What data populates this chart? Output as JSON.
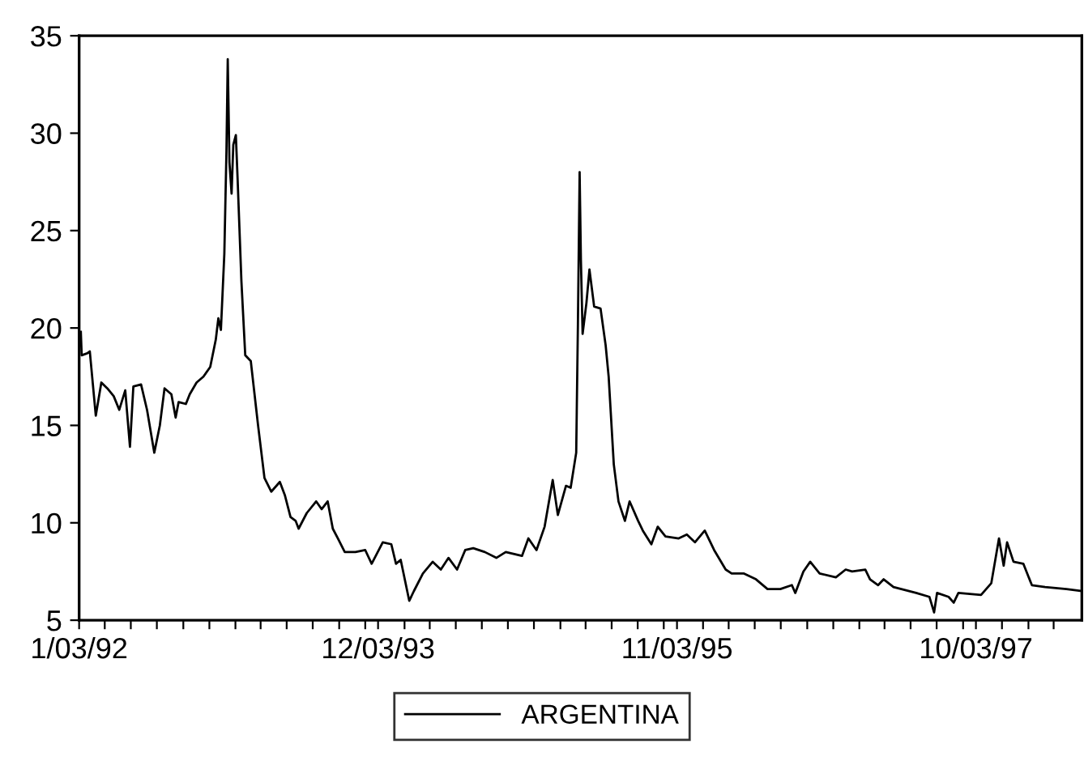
{
  "chart_data": {
    "type": "line",
    "x": [
      "1992-01-07",
      "1992-01-09",
      "1992-01-22",
      "1992-01-28",
      "1992-02-11",
      "1992-02-24",
      "1992-03-09",
      "1992-03-24",
      "1992-04-06",
      "1992-04-20",
      "1992-05-01",
      "1992-05-09",
      "1992-05-27",
      "1992-06-10",
      "1992-06-27",
      "1992-07-10",
      "1992-07-21",
      "1992-08-06",
      "1992-08-16",
      "1992-08-23",
      "1992-09-09",
      "1992-09-18",
      "1992-10-04",
      "1992-10-20",
      "1992-11-05",
      "1992-11-18",
      "1992-11-24",
      "1992-11-30",
      "1992-12-08",
      "1992-12-13",
      "1992-12-16",
      "1992-12-20",
      "1992-12-25",
      "1992-12-29",
      "1993-01-04",
      "1993-01-08",
      "1993-01-17",
      "1993-01-26",
      "1993-02-08",
      "1993-02-25",
      "1993-03-12",
      "1993-03-28",
      "1993-04-17",
      "1993-04-29",
      "1993-05-12",
      "1993-05-24",
      "1993-05-31",
      "1993-06-19",
      "1993-07-11",
      "1993-07-24",
      "1993-08-07",
      "1993-08-19",
      "1993-08-31",
      "1993-09-16",
      "1993-10-11",
      "1993-11-03",
      "1993-11-18",
      "1993-12-14",
      "1994-01-03",
      "1994-01-14",
      "1994-01-25",
      "1994-02-14",
      "1994-02-25",
      "1994-03-18",
      "1994-04-10",
      "1994-04-29",
      "1994-05-17",
      "1994-06-06",
      "1994-06-25",
      "1994-07-14",
      "1994-08-10",
      "1994-09-06",
      "1994-09-28",
      "1994-11-05",
      "1994-11-20",
      "1994-12-09",
      "1994-12-28",
      "1995-01-16",
      "1995-01-28",
      "1995-02-16",
      "1995-02-27",
      "1995-03-12",
      "1995-03-16",
      "1995-03-20",
      "1995-03-23",
      "1995-03-27",
      "1995-04-05",
      "1995-04-12",
      "1995-04-23",
      "1995-05-08",
      "1995-05-20",
      "1995-05-27",
      "1995-06-08",
      "1995-06-19",
      "1995-07-04",
      "1995-07-15",
      "1995-08-04",
      "1995-08-15",
      "1995-09-04",
      "1995-09-19",
      "1995-10-07",
      "1995-11-07",
      "1995-11-26",
      "1995-12-15",
      "1996-01-07",
      "1996-01-29",
      "1996-02-25",
      "1996-03-10",
      "1996-04-07",
      "1996-05-06",
      "1996-06-02",
      "1996-07-02",
      "1996-07-29",
      "1996-08-06",
      "1996-08-25",
      "1996-09-10",
      "1996-10-02",
      "1996-11-09",
      "1996-12-02",
      "1996-12-17",
      "1997-01-17",
      "1997-01-28",
      "1997-02-16",
      "1997-03-01",
      "1997-03-24",
      "1997-05-16",
      "1997-06-16",
      "1997-06-27",
      "1997-07-04",
      "1997-07-31",
      "1997-08-12",
      "1997-08-23",
      "1997-10-15",
      "1997-11-08",
      "1997-11-26",
      "1997-12-07",
      "1997-12-15",
      "1997-12-30",
      "1998-01-22",
      "1998-02-11",
      "1998-03-14",
      "1998-05-03",
      "1998-06-06"
    ],
    "series": [
      {
        "name": "ARGENTINA",
        "color": "#000000",
        "values": [
          19.8,
          18.6,
          18.7,
          18.8,
          15.5,
          17.2,
          16.9,
          16.5,
          15.8,
          16.8,
          13.9,
          17.0,
          17.1,
          15.8,
          13.6,
          15.0,
          16.9,
          16.6,
          15.4,
          16.2,
          16.1,
          16.6,
          17.2,
          17.5,
          18.0,
          19.4,
          20.5,
          19.9,
          23.8,
          29.1,
          33.8,
          28.5,
          26.9,
          29.4,
          29.9,
          27.7,
          22.4,
          18.6,
          18.3,
          15.0,
          12.3,
          11.6,
          12.1,
          11.4,
          10.3,
          10.1,
          9.7,
          10.5,
          11.1,
          10.7,
          11.1,
          9.7,
          9.2,
          8.5,
          8.5,
          8.6,
          7.9,
          9.0,
          8.9,
          7.9,
          8.1,
          6.0,
          6.5,
          7.4,
          8.0,
          7.6,
          8.2,
          7.6,
          8.6,
          8.7,
          8.5,
          8.2,
          8.5,
          8.3,
          9.2,
          8.6,
          9.8,
          12.2,
          10.4,
          11.9,
          11.8,
          13.6,
          20.2,
          28.0,
          23.5,
          19.7,
          21.3,
          23.0,
          21.1,
          21.0,
          19.1,
          17.5,
          13.0,
          11.1,
          10.1,
          11.1,
          10.1,
          9.6,
          8.9,
          9.8,
          9.3,
          9.2,
          9.4,
          9.0,
          9.6,
          8.6,
          7.6,
          7.4,
          7.4,
          7.1,
          6.6,
          6.6,
          6.8,
          6.4,
          7.5,
          8.0,
          7.4,
          7.2,
          7.6,
          7.5,
          7.6,
          7.1,
          6.8,
          7.1,
          6.7,
          6.4,
          6.2,
          5.4,
          6.4,
          6.2,
          5.9,
          6.4,
          6.3,
          6.9,
          9.2,
          7.8,
          9.0,
          8.0,
          7.9,
          6.8,
          6.7,
          6.6,
          6.5
        ]
      }
    ],
    "xlim": [
      "1992-01-03",
      "1998-06-08"
    ],
    "xticks": [
      {
        "value": "1992-01-03",
        "label": "1/03/92"
      },
      {
        "value": "1992-03-03",
        "label": null
      },
      {
        "value": "1992-05-03",
        "label": null
      },
      {
        "value": "1992-07-03",
        "label": null
      },
      {
        "value": "1992-09-03",
        "label": null
      },
      {
        "value": "1992-11-03",
        "label": null
      },
      {
        "value": "1993-01-03",
        "label": null
      },
      {
        "value": "1993-03-03",
        "label": null
      },
      {
        "value": "1993-05-03",
        "label": null
      },
      {
        "value": "1993-07-03",
        "label": null
      },
      {
        "value": "1993-09-03",
        "label": null
      },
      {
        "value": "1993-11-03",
        "label": null
      },
      {
        "value": "1993-12-03",
        "label": "12/03/93"
      },
      {
        "value": "1994-02-03",
        "label": null
      },
      {
        "value": "1994-04-03",
        "label": null
      },
      {
        "value": "1994-06-03",
        "label": null
      },
      {
        "value": "1994-08-03",
        "label": null
      },
      {
        "value": "1994-10-03",
        "label": null
      },
      {
        "value": "1994-12-03",
        "label": null
      },
      {
        "value": "1995-02-03",
        "label": null
      },
      {
        "value": "1995-04-03",
        "label": null
      },
      {
        "value": "1995-06-03",
        "label": null
      },
      {
        "value": "1995-08-03",
        "label": null
      },
      {
        "value": "1995-10-03",
        "label": null
      },
      {
        "value": "1995-11-03",
        "label": "11/03/95"
      },
      {
        "value": "1996-01-03",
        "label": null
      },
      {
        "value": "1996-03-03",
        "label": null
      },
      {
        "value": "1996-05-03",
        "label": null
      },
      {
        "value": "1996-07-03",
        "label": null
      },
      {
        "value": "1996-09-03",
        "label": null
      },
      {
        "value": "1996-11-03",
        "label": null
      },
      {
        "value": "1997-01-03",
        "label": null
      },
      {
        "value": "1997-03-03",
        "label": null
      },
      {
        "value": "1997-05-03",
        "label": null
      },
      {
        "value": "1997-07-03",
        "label": null
      },
      {
        "value": "1997-09-03",
        "label": null
      },
      {
        "value": "1997-10-03",
        "label": "10/03/97"
      },
      {
        "value": "1997-12-03",
        "label": null
      },
      {
        "value": "1998-02-03",
        "label": null
      },
      {
        "value": "1998-04-03",
        "label": null
      }
    ],
    "ylim": [
      5,
      35
    ],
    "yticks": [
      5,
      10,
      15,
      20,
      25,
      30,
      35
    ],
    "legend": "bottom",
    "grid": false,
    "line_style": "solid"
  }
}
